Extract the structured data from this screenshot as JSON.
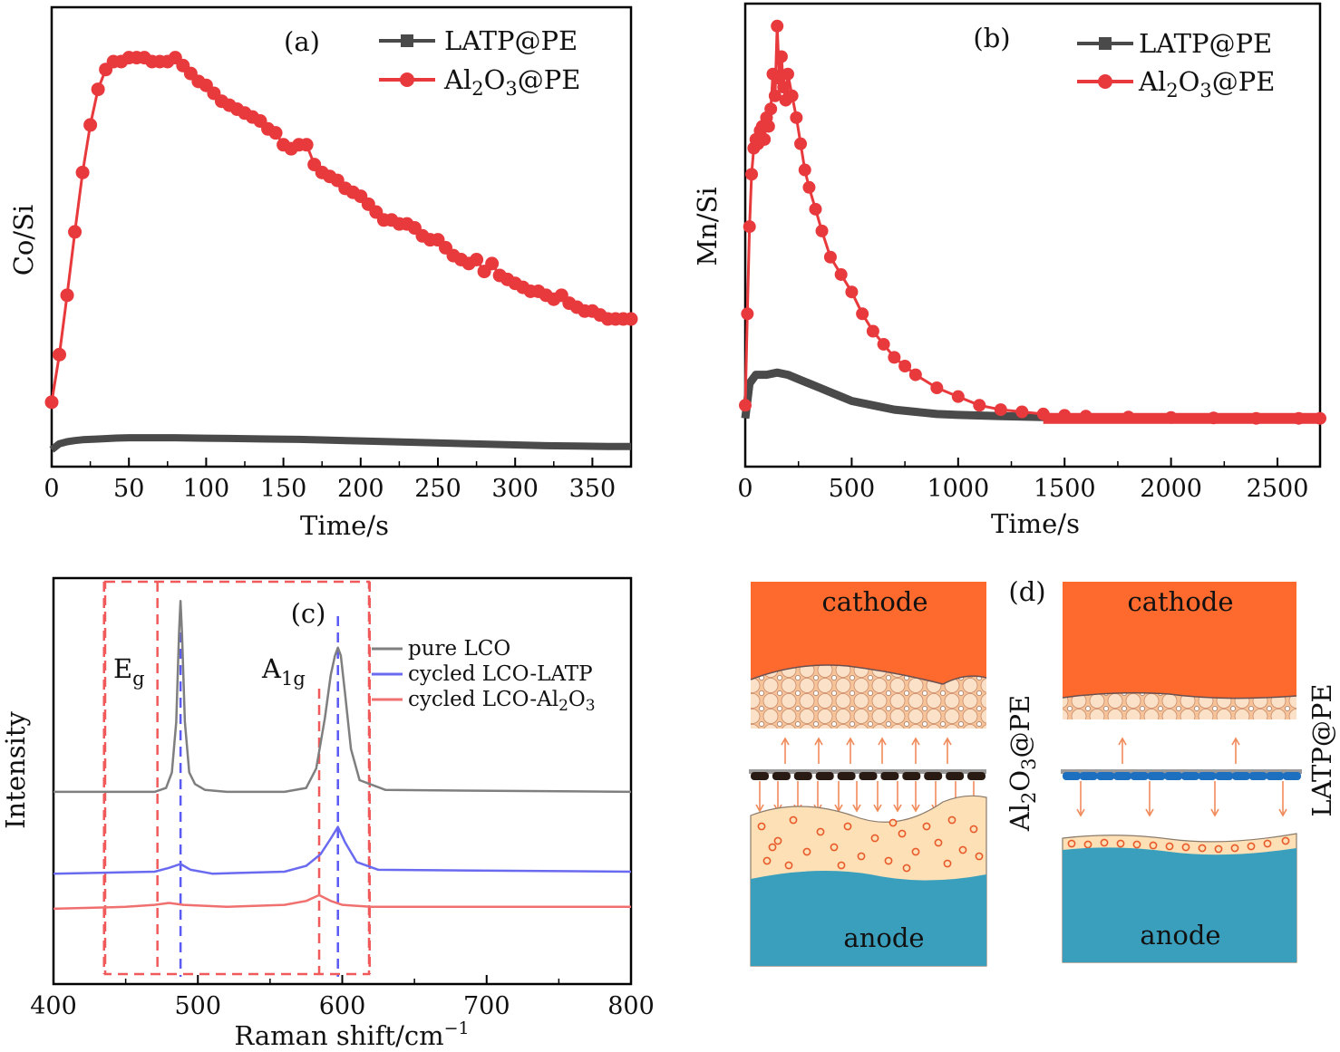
{
  "figure": {
    "panels": [
      {
        "id": "a",
        "label": "(a)"
      },
      {
        "id": "b",
        "label": "(b)"
      },
      {
        "id": "c",
        "label": "(c)"
      },
      {
        "id": "d",
        "label": "(d)"
      }
    ]
  },
  "colors": {
    "latp": "#4a4a4a",
    "al2o3": "#e8393c",
    "pure": "#7f7f7f",
    "cycled_latp": "#6a6af0",
    "cycled_al2o3": "#f07070",
    "guide": "#f05a5a",
    "peakline": "#5a5af5",
    "cathode": "#fe6a2d",
    "anode": "#3a9fbd",
    "sei": "#fde0b6"
  },
  "chart_data": [
    {
      "id": "a",
      "type": "line",
      "panel_label": "(a)",
      "xlabel": "Time/s",
      "ylabel": "Co/Si",
      "xlim": [
        0,
        375
      ],
      "ylim": [
        0,
        1
      ],
      "xticks": [
        0,
        50,
        100,
        150,
        200,
        250,
        300,
        350
      ],
      "y_tick_labels": "none",
      "grid": false,
      "legend": "top-right",
      "series": [
        {
          "name": "LATP@PE",
          "marker": "square",
          "x": [
            0,
            5,
            10,
            15,
            20,
            30,
            40,
            50,
            60,
            70,
            80,
            100,
            120,
            140,
            160,
            180,
            200,
            220,
            240,
            260,
            280,
            300,
            320,
            340,
            360,
            375
          ],
          "y": [
            0.02,
            0.035,
            0.04,
            0.043,
            0.045,
            0.047,
            0.049,
            0.05,
            0.05,
            0.05,
            0.05,
            0.049,
            0.048,
            0.047,
            0.046,
            0.044,
            0.042,
            0.04,
            0.038,
            0.036,
            0.034,
            0.032,
            0.03,
            0.029,
            0.028,
            0.028
          ]
        },
        {
          "name": "Al2O3@PE",
          "marker": "circle",
          "x": [
            0,
            5,
            10,
            15,
            20,
            25,
            30,
            35,
            40,
            45,
            50,
            55,
            60,
            65,
            70,
            75,
            80,
            85,
            90,
            95,
            100,
            105,
            110,
            115,
            120,
            125,
            130,
            135,
            140,
            145,
            150,
            155,
            160,
            165,
            170,
            175,
            180,
            185,
            190,
            195,
            200,
            205,
            210,
            215,
            220,
            225,
            230,
            235,
            240,
            245,
            250,
            255,
            260,
            265,
            270,
            275,
            280,
            285,
            290,
            295,
            300,
            305,
            310,
            315,
            320,
            325,
            330,
            335,
            340,
            345,
            350,
            355,
            360,
            365,
            370,
            375
          ],
          "y": [
            0.14,
            0.26,
            0.41,
            0.57,
            0.72,
            0.84,
            0.93,
            0.98,
            1.0,
            1.0,
            1.01,
            1.01,
            1.01,
            1.0,
            1.0,
            1.0,
            1.01,
            0.99,
            0.97,
            0.95,
            0.94,
            0.92,
            0.9,
            0.89,
            0.88,
            0.87,
            0.86,
            0.85,
            0.83,
            0.82,
            0.79,
            0.78,
            0.79,
            0.79,
            0.74,
            0.72,
            0.71,
            0.7,
            0.68,
            0.67,
            0.66,
            0.64,
            0.62,
            0.6,
            0.6,
            0.59,
            0.59,
            0.58,
            0.56,
            0.55,
            0.55,
            0.53,
            0.51,
            0.5,
            0.49,
            0.5,
            0.47,
            0.49,
            0.46,
            0.45,
            0.44,
            0.43,
            0.42,
            0.42,
            0.41,
            0.4,
            0.41,
            0.39,
            0.38,
            0.37,
            0.37,
            0.36,
            0.35,
            0.35,
            0.35,
            0.35
          ]
        }
      ]
    },
    {
      "id": "b",
      "type": "line",
      "panel_label": "(b)",
      "xlabel": "Time/s",
      "ylabel": "Mn/Si",
      "xlim": [
        0,
        2700
      ],
      "ylim": [
        0,
        1
      ],
      "xticks": [
        0,
        500,
        1000,
        1500,
        2000,
        2500
      ],
      "y_tick_labels": "none",
      "grid": false,
      "legend": "top-right",
      "series": [
        {
          "name": "LATP@PE",
          "marker": "square",
          "x": [
            0,
            20,
            50,
            100,
            150,
            200,
            250,
            300,
            350,
            400,
            450,
            500,
            600,
            700,
            800,
            900,
            1000,
            1200,
            1400,
            1600,
            1800,
            2000,
            2200,
            2400,
            2600,
            2700
          ],
          "y": [
            0.09,
            0.17,
            0.19,
            0.19,
            0.195,
            0.19,
            0.18,
            0.17,
            0.16,
            0.15,
            0.14,
            0.13,
            0.12,
            0.11,
            0.105,
            0.1,
            0.098,
            0.095,
            0.093,
            0.09,
            0.09,
            0.09,
            0.09,
            0.09,
            0.09,
            0.09
          ]
        },
        {
          "name": "Al2O3@PE",
          "marker": "circle",
          "x": [
            0,
            10,
            20,
            30,
            40,
            50,
            60,
            70,
            80,
            90,
            100,
            110,
            120,
            130,
            140,
            150,
            160,
            170,
            180,
            190,
            200,
            220,
            240,
            260,
            280,
            300,
            330,
            360,
            400,
            450,
            500,
            550,
            600,
            650,
            700,
            750,
            800,
            900,
            1000,
            1100,
            1200,
            1300,
            1400,
            1500,
            1600,
            1800,
            2000,
            2200,
            2400,
            2600,
            2700
          ],
          "y": [
            0.12,
            0.33,
            0.53,
            0.65,
            0.71,
            0.73,
            0.72,
            0.75,
            0.76,
            0.73,
            0.78,
            0.76,
            0.8,
            0.88,
            0.83,
            0.99,
            0.87,
            0.92,
            0.85,
            0.82,
            0.88,
            0.83,
            0.78,
            0.72,
            0.66,
            0.62,
            0.57,
            0.52,
            0.46,
            0.42,
            0.38,
            0.33,
            0.29,
            0.26,
            0.23,
            0.21,
            0.19,
            0.16,
            0.14,
            0.12,
            0.11,
            0.105,
            0.1,
            0.097,
            0.095,
            0.093,
            0.092,
            0.091,
            0.09,
            0.09,
            0.09
          ]
        }
      ]
    },
    {
      "id": "c",
      "type": "line",
      "panel_label": "(c)",
      "xlabel": "Raman shift/cm",
      "xlabel_superscript": "−1",
      "ylabel": "Intensity",
      "xlim": [
        400,
        800
      ],
      "ylim": [
        0,
        1
      ],
      "xticks": [
        400,
        500,
        600,
        700,
        800
      ],
      "y_tick_labels": "none",
      "grid": false,
      "legend": "top-right",
      "peak_labels": [
        {
          "base": "E",
          "sub": "g",
          "x": 488
        },
        {
          "base": "A",
          "sub": "1g",
          "x": 597
        }
      ],
      "guide_lines_x": [
        435,
        472,
        584,
        619
      ],
      "peak_lines_x": [
        488,
        597
      ],
      "series": [
        {
          "name": "pure LCO",
          "x": [
            400,
            470,
            478,
            482,
            485,
            487,
            488,
            489,
            491,
            494,
            498,
            505,
            520,
            560,
            575,
            582,
            588,
            592,
            595,
            597,
            599,
            602,
            606,
            612,
            630,
            800
          ],
          "y": [
            0.47,
            0.47,
            0.48,
            0.52,
            0.65,
            0.88,
            0.96,
            0.88,
            0.65,
            0.52,
            0.49,
            0.475,
            0.47,
            0.47,
            0.48,
            0.53,
            0.66,
            0.77,
            0.82,
            0.84,
            0.82,
            0.72,
            0.58,
            0.5,
            0.475,
            0.47
          ]
        },
        {
          "name": "cycled LCO-LATP",
          "x": [
            400,
            470,
            480,
            488,
            495,
            510,
            560,
            575,
            585,
            592,
            597,
            602,
            610,
            625,
            800
          ],
          "y": [
            0.26,
            0.265,
            0.275,
            0.285,
            0.27,
            0.26,
            0.265,
            0.28,
            0.31,
            0.35,
            0.38,
            0.34,
            0.29,
            0.27,
            0.265
          ]
        },
        {
          "name": "cycled LCO-Al2O3",
          "x": [
            400,
            450,
            470,
            480,
            490,
            520,
            560,
            575,
            584,
            592,
            600,
            620,
            800
          ],
          "y": [
            0.17,
            0.175,
            0.18,
            0.185,
            0.18,
            0.175,
            0.18,
            0.19,
            0.205,
            0.19,
            0.18,
            0.175,
            0.175
          ]
        }
      ]
    }
  ],
  "diagram": {
    "left": {
      "cathode": "cathode",
      "anode": "anode",
      "separator": "Al₂O₃@PE"
    },
    "right": {
      "cathode": "cathode",
      "anode": "anode",
      "separator": "LATP@PE"
    }
  }
}
